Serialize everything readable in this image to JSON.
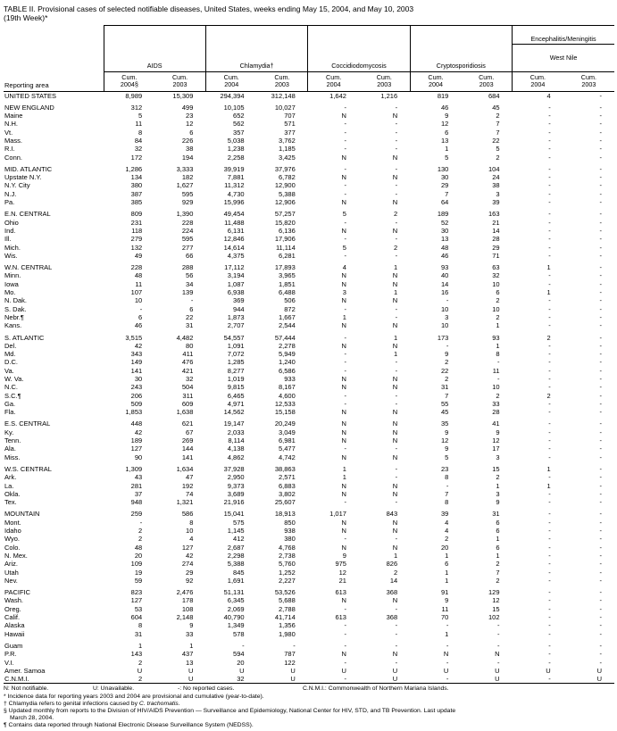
{
  "title_line1": "TABLE II. Provisional cases of selected notifiable diseases, United States, weeks ending May 15, 2004, and May 10, 2003",
  "title_line2": "(19th Week)*",
  "table": {
    "row_header": "Reporting area",
    "column_groups": [
      {
        "label": "AIDS",
        "sub": [
          "Cum.\n2004§",
          "Cum.\n2003"
        ]
      },
      {
        "label": "Chlamydia†",
        "sub": [
          "Cum.\n2004",
          "Cum.\n2003"
        ]
      },
      {
        "label": "Coccidiodomycosis",
        "sub": [
          "Cum.\n2004",
          "Cum.\n2003"
        ]
      },
      {
        "label": "Cryptosporidiosis",
        "sub": [
          "Cum.\n2004",
          "Cum.\n2003"
        ]
      },
      {
        "label": "Encephalitis/Meningitis",
        "sublabel": "West Nile",
        "sub": [
          "Cum.\n2004",
          "Cum.\n2003"
        ]
      }
    ],
    "groups": [
      {
        "rows": [
          [
            "UNITED STATES",
            "8,989",
            "15,309",
            "294,394",
            "312,148",
            "1,642",
            "1,216",
            "819",
            "684",
            "4",
            "-"
          ]
        ]
      },
      {
        "rows": [
          [
            "NEW ENGLAND",
            "312",
            "499",
            "10,105",
            "10,027",
            "-",
            "-",
            "46",
            "45",
            "-",
            "-"
          ],
          [
            "Maine",
            "5",
            "23",
            "652",
            "707",
            "N",
            "N",
            "9",
            "2",
            "-",
            "-"
          ],
          [
            "N.H.",
            "11",
            "12",
            "562",
            "571",
            "-",
            "-",
            "12",
            "7",
            "-",
            "-"
          ],
          [
            "Vt.",
            "8",
            "6",
            "357",
            "377",
            "-",
            "-",
            "6",
            "7",
            "-",
            "-"
          ],
          [
            "Mass.",
            "84",
            "226",
            "5,038",
            "3,762",
            "-",
            "-",
            "13",
            "22",
            "-",
            "-"
          ],
          [
            "R.I.",
            "32",
            "38",
            "1,238",
            "1,185",
            "-",
            "-",
            "1",
            "5",
            "-",
            "-"
          ],
          [
            "Conn.",
            "172",
            "194",
            "2,258",
            "3,425",
            "N",
            "N",
            "5",
            "2",
            "-",
            "-"
          ]
        ]
      },
      {
        "rows": [
          [
            "MID. ATLANTIC",
            "1,286",
            "3,333",
            "39,919",
            "37,976",
            "-",
            "-",
            "130",
            "104",
            "-",
            "-"
          ],
          [
            "Upstate N.Y.",
            "134",
            "182",
            "7,881",
            "6,782",
            "N",
            "N",
            "30",
            "24",
            "-",
            "-"
          ],
          [
            "N.Y. City",
            "380",
            "1,627",
            "11,312",
            "12,900",
            "-",
            "-",
            "29",
            "38",
            "-",
            "-"
          ],
          [
            "N.J.",
            "387",
            "595",
            "4,730",
            "5,388",
            "-",
            "-",
            "7",
            "3",
            "-",
            "-"
          ],
          [
            "Pa.",
            "385",
            "929",
            "15,996",
            "12,906",
            "N",
            "N",
            "64",
            "39",
            "-",
            "-"
          ]
        ]
      },
      {
        "rows": [
          [
            "E.N. CENTRAL",
            "809",
            "1,390",
            "49,454",
            "57,257",
            "5",
            "2",
            "189",
            "163",
            "-",
            "-"
          ],
          [
            "Ohio",
            "231",
            "228",
            "11,488",
            "15,820",
            "-",
            "-",
            "52",
            "21",
            "-",
            "-"
          ],
          [
            "Ind.",
            "118",
            "224",
            "6,131",
            "6,136",
            "N",
            "N",
            "30",
            "14",
            "-",
            "-"
          ],
          [
            "Ill.",
            "279",
            "595",
            "12,846",
            "17,906",
            "-",
            "-",
            "13",
            "28",
            "-",
            "-"
          ],
          [
            "Mich.",
            "132",
            "277",
            "14,614",
            "11,114",
            "5",
            "2",
            "48",
            "29",
            "-",
            "-"
          ],
          [
            "Wis.",
            "49",
            "66",
            "4,375",
            "6,281",
            "-",
            "-",
            "46",
            "71",
            "-",
            "-"
          ]
        ]
      },
      {
        "rows": [
          [
            "W.N. CENTRAL",
            "228",
            "288",
            "17,112",
            "17,893",
            "4",
            "1",
            "93",
            "63",
            "1",
            "-"
          ],
          [
            "Minn.",
            "48",
            "56",
            "3,194",
            "3,965",
            "N",
            "N",
            "40",
            "32",
            "-",
            "-"
          ],
          [
            "Iowa",
            "11",
            "34",
            "1,087",
            "1,851",
            "N",
            "N",
            "14",
            "10",
            "-",
            "-"
          ],
          [
            "Mo.",
            "107",
            "139",
            "6,938",
            "6,488",
            "3",
            "1",
            "16",
            "6",
            "1",
            "-"
          ],
          [
            "N. Dak.",
            "10",
            "-",
            "369",
            "506",
            "N",
            "N",
            "-",
            "2",
            "-",
            "-"
          ],
          [
            "S. Dak.",
            "-",
            "6",
            "944",
            "872",
            "-",
            "-",
            "10",
            "10",
            "-",
            "-"
          ],
          [
            "Nebr.¶",
            "6",
            "22",
            "1,873",
            "1,667",
            "1",
            "-",
            "3",
            "2",
            "-",
            "-"
          ],
          [
            "Kans.",
            "46",
            "31",
            "2,707",
            "2,544",
            "N",
            "N",
            "10",
            "1",
            "-",
            "-"
          ]
        ]
      },
      {
        "rows": [
          [
            "S. ATLANTIC",
            "3,515",
            "4,482",
            "54,557",
            "57,444",
            "-",
            "1",
            "173",
            "93",
            "2",
            "-"
          ],
          [
            "Del.",
            "42",
            "80",
            "1,091",
            "2,278",
            "N",
            "N",
            "-",
            "1",
            "-",
            "-"
          ],
          [
            "Md.",
            "343",
            "411",
            "7,072",
            "5,949",
            "-",
            "1",
            "9",
            "8",
            "-",
            "-"
          ],
          [
            "D.C.",
            "149",
            "476",
            "1,285",
            "1,240",
            "-",
            "-",
            "2",
            "-",
            "-",
            "-"
          ],
          [
            "Va.",
            "141",
            "421",
            "8,277",
            "6,586",
            "-",
            "-",
            "22",
            "11",
            "-",
            "-"
          ],
          [
            "W. Va.",
            "30",
            "32",
            "1,019",
            "933",
            "N",
            "N",
            "2",
            "-",
            "-",
            "-"
          ],
          [
            "N.C.",
            "243",
            "504",
            "9,815",
            "8,167",
            "N",
            "N",
            "31",
            "10",
            "-",
            "-"
          ],
          [
            "S.C.¶",
            "206",
            "311",
            "6,465",
            "4,600",
            "-",
            "-",
            "7",
            "2",
            "2",
            "-"
          ],
          [
            "Ga.",
            "509",
            "609",
            "4,971",
            "12,533",
            "-",
            "-",
            "55",
            "33",
            "-",
            "-"
          ],
          [
            "Fla.",
            "1,853",
            "1,638",
            "14,562",
            "15,158",
            "N",
            "N",
            "45",
            "28",
            "-",
            "-"
          ]
        ]
      },
      {
        "rows": [
          [
            "E.S. CENTRAL",
            "448",
            "621",
            "19,147",
            "20,249",
            "N",
            "N",
            "35",
            "41",
            "-",
            "-"
          ],
          [
            "Ky.",
            "42",
            "67",
            "2,033",
            "3,049",
            "N",
            "N",
            "9",
            "9",
            "-",
            "-"
          ],
          [
            "Tenn.",
            "189",
            "269",
            "8,114",
            "6,981",
            "N",
            "N",
            "12",
            "12",
            "-",
            "-"
          ],
          [
            "Ala.",
            "127",
            "144",
            "4,138",
            "5,477",
            "-",
            "-",
            "9",
            "17",
            "-",
            "-"
          ],
          [
            "Miss.",
            "90",
            "141",
            "4,862",
            "4,742",
            "N",
            "N",
            "5",
            "3",
            "-",
            "-"
          ]
        ]
      },
      {
        "rows": [
          [
            "W.S. CENTRAL",
            "1,309",
            "1,634",
            "37,928",
            "38,863",
            "1",
            "-",
            "23",
            "15",
            "1",
            "-"
          ],
          [
            "Ark.",
            "43",
            "47",
            "2,950",
            "2,571",
            "1",
            "-",
            "8",
            "2",
            "-",
            "-"
          ],
          [
            "La.",
            "281",
            "192",
            "9,373",
            "6,883",
            "N",
            "N",
            "-",
            "1",
            "1",
            "-"
          ],
          [
            "Okla.",
            "37",
            "74",
            "3,689",
            "3,802",
            "N",
            "N",
            "7",
            "3",
            "-",
            "-"
          ],
          [
            "Tex.",
            "948",
            "1,321",
            "21,916",
            "25,607",
            "-",
            "-",
            "8",
            "9",
            "-",
            "-"
          ]
        ]
      },
      {
        "rows": [
          [
            "MOUNTAIN",
            "259",
            "586",
            "15,041",
            "18,913",
            "1,017",
            "843",
            "39",
            "31",
            "-",
            "-"
          ],
          [
            "Mont.",
            "-",
            "8",
            "575",
            "850",
            "N",
            "N",
            "4",
            "6",
            "-",
            "-"
          ],
          [
            "Idaho",
            "2",
            "10",
            "1,145",
            "938",
            "N",
            "N",
            "4",
            "6",
            "-",
            "-"
          ],
          [
            "Wyo.",
            "2",
            "4",
            "412",
            "380",
            "-",
            "-",
            "2",
            "1",
            "-",
            "-"
          ],
          [
            "Colo.",
            "48",
            "127",
            "2,687",
            "4,768",
            "N",
            "N",
            "20",
            "6",
            "-",
            "-"
          ],
          [
            "N. Mex.",
            "20",
            "42",
            "2,298",
            "2,738",
            "9",
            "1",
            "1",
            "1",
            "-",
            "-"
          ],
          [
            "Ariz.",
            "109",
            "274",
            "5,388",
            "5,760",
            "975",
            "826",
            "6",
            "2",
            "-",
            "-"
          ],
          [
            "Utah",
            "19",
            "29",
            "845",
            "1,252",
            "12",
            "2",
            "1",
            "7",
            "-",
            "-"
          ],
          [
            "Nev.",
            "59",
            "92",
            "1,691",
            "2,227",
            "21",
            "14",
            "1",
            "2",
            "-",
            "-"
          ]
        ]
      },
      {
        "rows": [
          [
            "PACIFIC",
            "823",
            "2,476",
            "51,131",
            "53,526",
            "613",
            "368",
            "91",
            "129",
            "-",
            "-"
          ],
          [
            "Wash.",
            "127",
            "178",
            "6,345",
            "5,688",
            "N",
            "N",
            "9",
            "12",
            "-",
            "-"
          ],
          [
            "Oreg.",
            "53",
            "108",
            "2,069",
            "2,788",
            "-",
            "-",
            "11",
            "15",
            "-",
            "-"
          ],
          [
            "Calif.",
            "604",
            "2,148",
            "40,790",
            "41,714",
            "613",
            "368",
            "70",
            "102",
            "-",
            "-"
          ],
          [
            "Alaska",
            "8",
            "9",
            "1,349",
            "1,356",
            "-",
            "-",
            "-",
            "-",
            "-",
            "-"
          ],
          [
            "Hawaii",
            "31",
            "33",
            "578",
            "1,980",
            "-",
            "-",
            "1",
            "-",
            "-",
            "-"
          ]
        ]
      },
      {
        "rows": [
          [
            "Guam",
            "1",
            "1",
            "-",
            "-",
            "-",
            "-",
            "-",
            "-",
            "-",
            "-"
          ],
          [
            "P.R.",
            "143",
            "437",
            "594",
            "787",
            "N",
            "N",
            "N",
            "N",
            "-",
            "-"
          ],
          [
            "V.I.",
            "2",
            "13",
            "20",
            "122",
            "-",
            "-",
            "-",
            "-",
            "-",
            "-"
          ],
          [
            "Amer. Samoa",
            "U",
            "U",
            "U",
            "U",
            "U",
            "U",
            "U",
            "U",
            "U",
            "U"
          ],
          [
            "C.N.M.I.",
            "2",
            "U",
            "32",
            "U",
            "-",
            "U",
            "-",
            "U",
            "-",
            "U"
          ]
        ]
      }
    ]
  },
  "footnotes": {
    "legend": [
      "N: Not notifiable.",
      "U: Unavailable.",
      "-: No reported cases.",
      "C.N.M.I.: Commonwealth of Northern Mariana Islands."
    ],
    "star": "* Incidence data for reporting years 2003 and 2004 are provisional and cumulative (year-to-date).",
    "dagger_prefix": "† Chlamydia refers to genital infections caused by ",
    "dagger_italic": "C. trachomatis.",
    "section_line1": "§ Updated monthly from reports to the Division of HIV/AIDS Prevention — Surveillance and Epidemiology, National Center for HIV, STD, and TB Prevention. Last update",
    "section_line2": "March 28, 2004.",
    "pilcrow": "¶ Contains data reported through National Electronic Disease Surveillance System (NEDSS)."
  }
}
